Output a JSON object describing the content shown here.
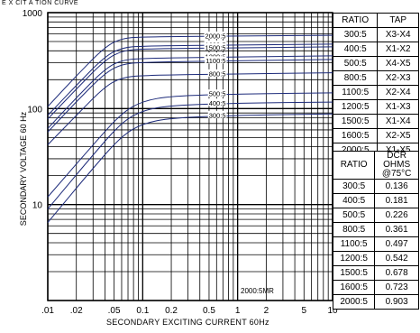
{
  "title": "E X CIT   A TION CURVE",
  "note": "2000:5MR",
  "chart_data": {
    "type": "line",
    "xlabel": "SECONDARY EXCITING CURRENT 60Hz",
    "ylabel": "SECONDARY VOLTAGE 60 Hz",
    "xscale": "log",
    "yscale": "log",
    "xlim": [
      0.01,
      10
    ],
    "ylim": [
      1,
      1000
    ],
    "x_ticks": [
      ".01",
      ".02",
      ".05",
      "0.1",
      "0.2",
      "0.5",
      "1",
      "2",
      "5",
      "10"
    ],
    "y_ticks": [
      "1000",
      "100",
      "10"
    ],
    "grid": true,
    "series": [
      {
        "name": "2000:5",
        "x": [
          0.01,
          0.02,
          0.04,
          0.06,
          0.1,
          1,
          10
        ],
        "y": [
          105,
          220,
          440,
          540,
          560,
          570,
          580
        ]
      },
      {
        "name": "1600:5",
        "x": [
          0.01,
          0.02,
          0.04,
          0.06,
          0.1,
          1,
          10
        ],
        "y": [
          85,
          175,
          350,
          430,
          450,
          460,
          470
        ]
      },
      {
        "name": "1500:5",
        "x": [
          0.01,
          0.02,
          0.04,
          0.06,
          0.1,
          1,
          10
        ],
        "y": [
          78,
          160,
          320,
          400,
          420,
          430,
          440
        ]
      },
      {
        "name": "1200:5",
        "x": [
          0.01,
          0.02,
          0.04,
          0.06,
          0.1,
          1,
          10
        ],
        "y": [
          62,
          130,
          260,
          320,
          335,
          345,
          355
        ]
      },
      {
        "name": "1100:5",
        "x": [
          0.01,
          0.02,
          0.04,
          0.06,
          0.1,
          1,
          10
        ],
        "y": [
          57,
          118,
          235,
          290,
          305,
          315,
          325
        ]
      },
      {
        "name": "800:5",
        "x": [
          0.01,
          0.02,
          0.04,
          0.06,
          0.1,
          1,
          10
        ],
        "y": [
          42,
          85,
          170,
          210,
          222,
          230,
          236
        ]
      },
      {
        "name": "500:5",
        "x": [
          0.01,
          0.03,
          0.06,
          0.1,
          0.2,
          1,
          10
        ],
        "y": [
          12,
          42,
          90,
          120,
          135,
          142,
          146
        ]
      },
      {
        "name": "400:5",
        "x": [
          0.01,
          0.03,
          0.06,
          0.1,
          0.2,
          1,
          10
        ],
        "y": [
          9,
          33,
          72,
          96,
          108,
          114,
          117
        ]
      },
      {
        "name": "300:5",
        "x": [
          0.01,
          0.03,
          0.06,
          0.1,
          0.2,
          1,
          10
        ],
        "y": [
          6.5,
          24,
          52,
          70,
          80,
          85,
          88
        ]
      }
    ]
  },
  "table_ratio_tap": {
    "headers": [
      "RATIO",
      "TAP"
    ],
    "rows": [
      [
        "300:5",
        "X3-X4"
      ],
      [
        "400:5",
        "X1-X2"
      ],
      [
        "500:5",
        "X4-X5"
      ],
      [
        "800:5",
        "X2-X3"
      ],
      [
        "1100:5",
        "X2-X4"
      ],
      [
        "1200:5",
        "X1-X3"
      ],
      [
        "1500:5",
        "X1-X4"
      ],
      [
        "1600:5",
        "X2-X5"
      ],
      [
        "2000:5",
        "X1-X5"
      ]
    ]
  },
  "table_dcr": {
    "headers": [
      "RATIO",
      "DCR OHMS @75°C"
    ],
    "rows": [
      [
        "300:5",
        "0.136"
      ],
      [
        "400:5",
        "0.181"
      ],
      [
        "500:5",
        "0.226"
      ],
      [
        "800:5",
        "0.361"
      ],
      [
        "1100:5",
        "0.497"
      ],
      [
        "1200:5",
        "0.542"
      ],
      [
        "1500:5",
        "0.678"
      ],
      [
        "1600:5",
        "0.723"
      ],
      [
        "2000:5",
        "0.903"
      ]
    ]
  }
}
